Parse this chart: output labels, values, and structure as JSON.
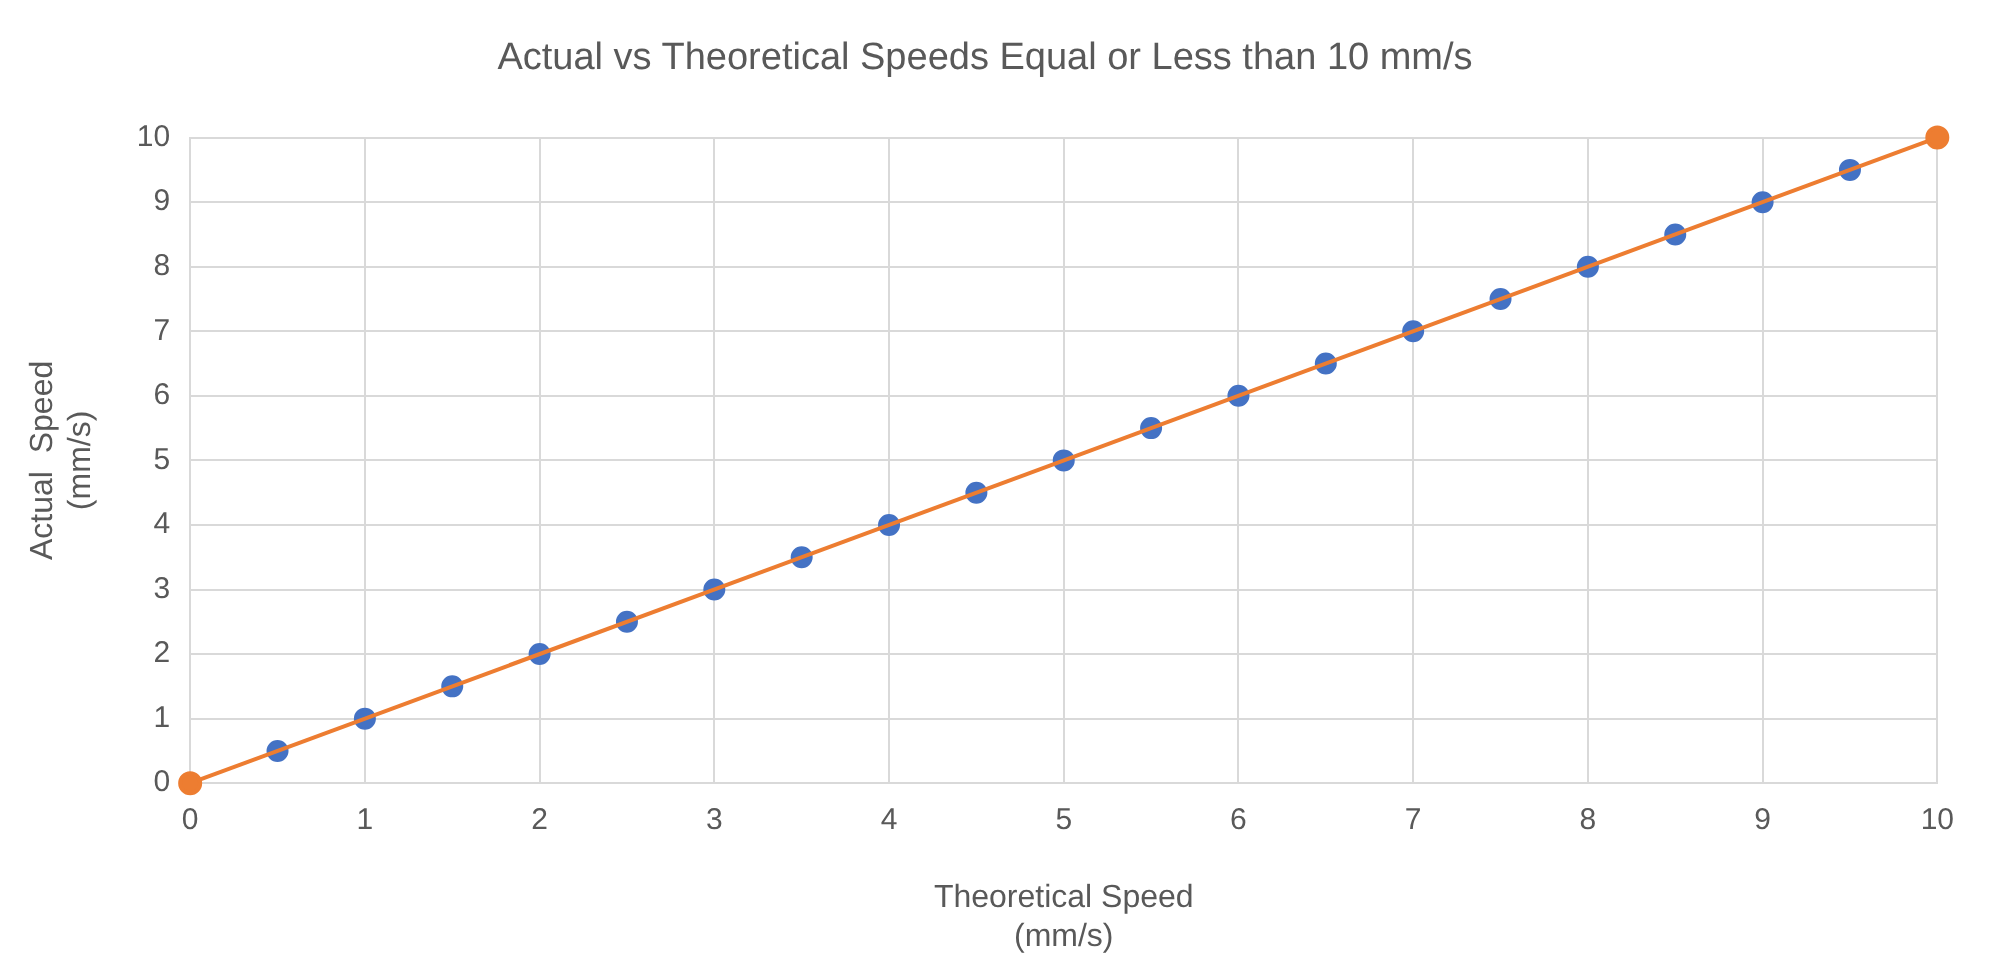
{
  "chart_data": {
    "type": "scatter",
    "title": "Actual vs Theoretical Speeds Equal or Less than 10 mm/s",
    "xlabel": "Theoretical Speed\n(mm/s)",
    "ylabel": "Actual  Speed\n(mm/s)",
    "series": [
      {
        "color": "#4472c4",
        "x": [
          0.5,
          1,
          1.5,
          2,
          2.5,
          3,
          3.5,
          4,
          4.5,
          5,
          5.5,
          6,
          6.5,
          7,
          7.5,
          8,
          8.5,
          9,
          9.5
        ],
        "values": [
          0.5,
          1,
          1.5,
          2,
          2.5,
          3,
          3.5,
          4,
          4.5,
          5,
          5.5,
          6,
          6.5,
          7,
          7.5,
          8,
          8.5,
          9,
          9.5
        ]
      },
      {
        "type": "line",
        "color": "#ed7d31",
        "x": [
          0,
          10
        ],
        "values": [
          0,
          10
        ]
      }
    ],
    "xlim": [
      0,
      10
    ],
    "xticks": [
      0,
      1,
      2,
      3,
      4,
      5,
      6,
      7,
      8,
      9,
      10
    ],
    "ylim": [
      0,
      10
    ],
    "yticks": [
      0,
      1,
      2,
      3,
      4,
      5,
      6,
      7,
      8,
      9,
      10
    ],
    "grid": true,
    "legend": false,
    "marker": "circle",
    "line_style": "solid"
  }
}
